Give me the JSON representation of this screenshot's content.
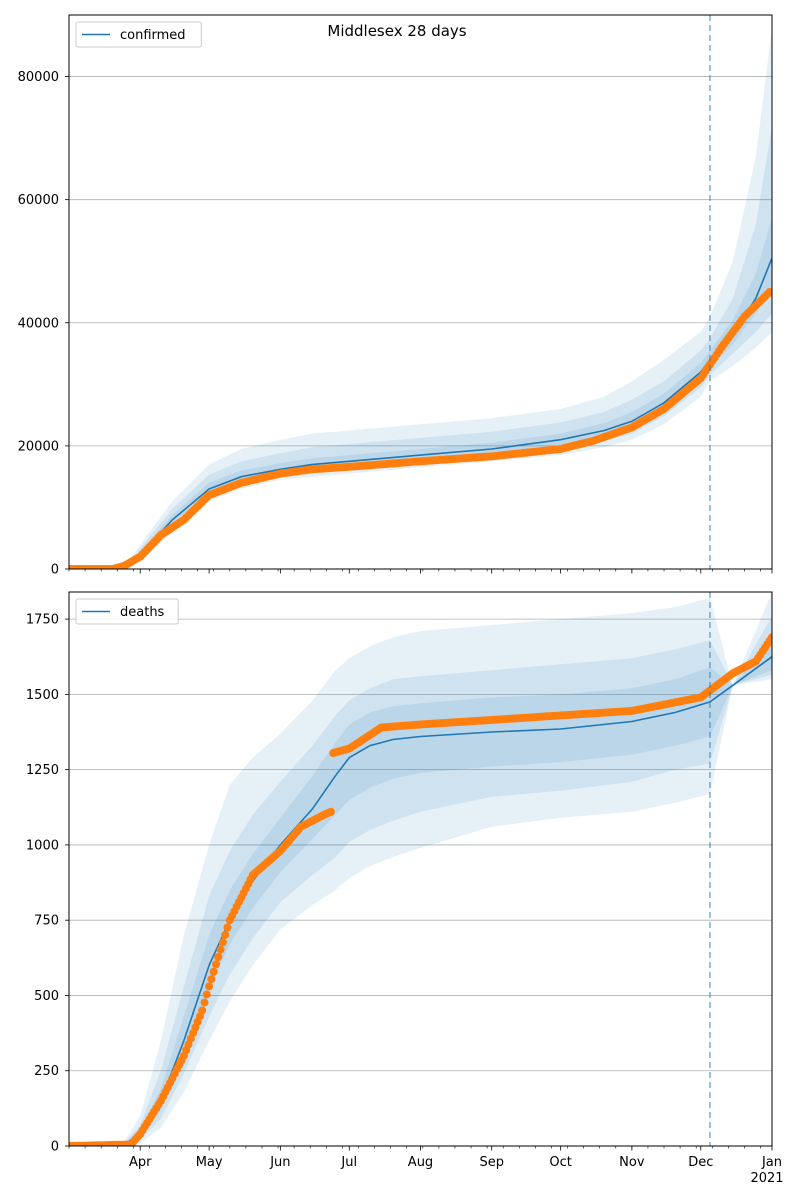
{
  "figure": {
    "title": "Middlesex 28 days",
    "year_label": "2021"
  },
  "colors": {
    "model": "#1f77b4",
    "observed": "#ff7f0e",
    "band": "#1f77b4",
    "grid": "#b0b0b0",
    "vline": "#1f77b4"
  },
  "month_ticks": [
    {
      "label": "Apr",
      "date": "2020-04-01"
    },
    {
      "label": "May",
      "date": "2020-05-01"
    },
    {
      "label": "Jun",
      "date": "2020-06-01"
    },
    {
      "label": "Jul",
      "date": "2020-07-01"
    },
    {
      "label": "Aug",
      "date": "2020-08-01"
    },
    {
      "label": "Sep",
      "date": "2020-09-01"
    },
    {
      "label": "Oct",
      "date": "2020-10-01"
    },
    {
      "label": "Nov",
      "date": "2020-11-01"
    },
    {
      "label": "Dec",
      "date": "2020-12-01"
    },
    {
      "label": "Jan",
      "date": "2021-01-01"
    }
  ],
  "chart_data": [
    {
      "type": "line",
      "legend": "confirmed",
      "legend_position": "top-left",
      "grid": "horizontal",
      "xlim": [
        "2020-03-01",
        "2021-01-01"
      ],
      "ylim": [
        0,
        90000
      ],
      "yticks": [
        0,
        20000,
        40000,
        60000,
        80000
      ],
      "vline_date": "2020-12-05",
      "model": {
        "x": [
          "2020-03-01",
          "2020-03-20",
          "2020-03-28",
          "2020-04-05",
          "2020-04-15",
          "2020-05-01",
          "2020-05-15",
          "2020-06-01",
          "2020-06-15",
          "2020-07-01",
          "2020-08-01",
          "2020-09-01",
          "2020-10-01",
          "2020-10-20",
          "2020-11-01",
          "2020-11-15",
          "2020-12-01",
          "2020-12-05",
          "2020-12-15",
          "2020-12-25",
          "2021-01-01"
        ],
        "y": [
          0,
          100,
          1000,
          4000,
          8000,
          13000,
          15000,
          16200,
          17000,
          17500,
          18500,
          19500,
          21000,
          22500,
          24000,
          27000,
          32000,
          34000,
          38000,
          44000,
          50500
        ]
      },
      "bands": [
        {
          "lo": [
            0,
            0,
            500,
            2500,
            6000,
            11000,
            13000,
            14500,
            15000,
            15500,
            16500,
            17500,
            18500,
            19800,
            21000,
            23500,
            28000,
            30500,
            33000,
            36000,
            38500
          ],
          "hi": [
            0,
            300,
            1800,
            6000,
            11000,
            17000,
            19500,
            21000,
            22000,
            22500,
            23500,
            24500,
            26000,
            28000,
            30500,
            34000,
            38500,
            41000,
            50000,
            67000,
            88000
          ]
        },
        {
          "lo": [
            0,
            50,
            700,
            3000,
            6800,
            11800,
            13800,
            15200,
            15800,
            16200,
            17200,
            18200,
            19500,
            20800,
            22000,
            24800,
            29500,
            31500,
            35000,
            38500,
            41500
          ],
          "hi": [
            0,
            200,
            1400,
            5200,
            9800,
            15300,
            17500,
            18800,
            19800,
            20300,
            21300,
            22300,
            23800,
            25500,
            27500,
            30500,
            35500,
            37500,
            44000,
            56000,
            72000
          ]
        },
        {
          "lo": [
            0,
            80,
            850,
            3500,
            7400,
            12400,
            14400,
            15700,
            16400,
            16900,
            17900,
            18900,
            20200,
            21600,
            23000,
            25800,
            30800,
            32800,
            36500,
            41500,
            45500
          ],
          "hi": [
            0,
            150,
            1200,
            4600,
            8800,
            14000,
            16000,
            17200,
            18000,
            18500,
            19500,
            20500,
            22000,
            23700,
            25500,
            28500,
            33500,
            35500,
            40500,
            48000,
            57000
          ]
        }
      ],
      "observed": {
        "x": [
          "2020-03-01",
          "2020-03-20",
          "2020-03-25",
          "2020-04-01",
          "2020-04-10",
          "2020-04-20",
          "2020-05-01",
          "2020-05-15",
          "2020-06-01",
          "2020-06-15",
          "2020-07-01",
          "2020-07-15",
          "2020-08-01",
          "2020-09-01",
          "2020-10-01",
          "2020-10-15",
          "2020-11-01",
          "2020-11-15",
          "2020-12-01",
          "2020-12-10",
          "2020-12-20",
          "2020-12-31"
        ],
        "y": [
          0,
          0,
          500,
          2000,
          5500,
          8000,
          12000,
          14000,
          15500,
          16200,
          16600,
          17000,
          17500,
          18300,
          19500,
          20800,
          23000,
          26000,
          31000,
          36000,
          41000,
          45000
        ]
      }
    },
    {
      "type": "line",
      "legend": "deaths",
      "legend_position": "top-left",
      "grid": "horizontal",
      "xlim": [
        "2020-03-01",
        "2021-01-01"
      ],
      "ylim": [
        0,
        1840
      ],
      "yticks": [
        0,
        250,
        500,
        750,
        1000,
        1250,
        1500,
        1750
      ],
      "vline_date": "2020-12-05",
      "model": {
        "x": [
          "2020-03-01",
          "2020-03-25",
          "2020-04-01",
          "2020-04-10",
          "2020-04-20",
          "2020-05-01",
          "2020-05-10",
          "2020-05-20",
          "2020-06-01",
          "2020-06-15",
          "2020-06-25",
          "2020-07-01",
          "2020-07-10",
          "2020-07-20",
          "2020-08-01",
          "2020-09-01",
          "2020-10-01",
          "2020-11-01",
          "2020-11-20",
          "2020-12-05",
          "2020-12-15",
          "2021-01-01"
        ],
        "y": [
          0,
          5,
          40,
          150,
          350,
          600,
          750,
          880,
          1000,
          1120,
          1230,
          1290,
          1330,
          1350,
          1360,
          1375,
          1385,
          1410,
          1440,
          1475,
          1530,
          1625
        ]
      },
      "bands": [
        {
          "lo": [
            0,
            0,
            10,
            60,
            180,
            350,
            480,
            600,
            720,
            800,
            850,
            890,
            930,
            960,
            990,
            1060,
            1090,
            1110,
            1140,
            1170,
            1530,
            1550
          ],
          "hi": [
            0,
            15,
            100,
            350,
            700,
            1000,
            1200,
            1290,
            1370,
            1480,
            1580,
            1620,
            1660,
            1690,
            1710,
            1730,
            1750,
            1770,
            1790,
            1820,
            1530,
            1840
          ]
        },
        {
          "lo": [
            0,
            2,
            20,
            90,
            240,
            430,
            570,
            690,
            810,
            900,
            960,
            1010,
            1050,
            1080,
            1110,
            1160,
            1180,
            1210,
            1250,
            1270,
            1530,
            1565
          ],
          "hi": [
            0,
            10,
            70,
            250,
            530,
            830,
            980,
            1100,
            1210,
            1330,
            1430,
            1480,
            1520,
            1550,
            1560,
            1580,
            1600,
            1620,
            1650,
            1680,
            1530,
            1760
          ]
        },
        {
          "lo": [
            0,
            3,
            30,
            120,
            300,
            520,
            670,
            790,
            910,
            1020,
            1100,
            1150,
            1190,
            1220,
            1240,
            1260,
            1275,
            1300,
            1330,
            1360,
            1530,
            1580
          ],
          "hi": [
            0,
            8,
            55,
            190,
            430,
            700,
            850,
            970,
            1090,
            1230,
            1340,
            1400,
            1440,
            1460,
            1470,
            1490,
            1500,
            1520,
            1550,
            1590,
            1530,
            1680
          ]
        }
      ],
      "observed": {
        "x": [
          "2020-03-01",
          "2020-03-28",
          "2020-04-01",
          "2020-04-10",
          "2020-04-20",
          "2020-04-28",
          "2020-05-01",
          "2020-05-10",
          "2020-05-20",
          "2020-06-01",
          "2020-06-10",
          "2020-06-20",
          "2020-06-23",
          "2020-06-24",
          "2020-07-01",
          "2020-07-15",
          "2020-08-01",
          "2020-09-01",
          "2020-10-01",
          "2020-11-01",
          "2020-12-01",
          "2020-12-15",
          "2020-12-25",
          "2021-01-01"
        ],
        "y": [
          0,
          5,
          40,
          150,
          300,
          450,
          530,
          750,
          900,
          980,
          1060,
          1100,
          1110,
          1305,
          1320,
          1390,
          1400,
          1415,
          1430,
          1445,
          1490,
          1570,
          1610,
          1690
        ]
      }
    }
  ]
}
